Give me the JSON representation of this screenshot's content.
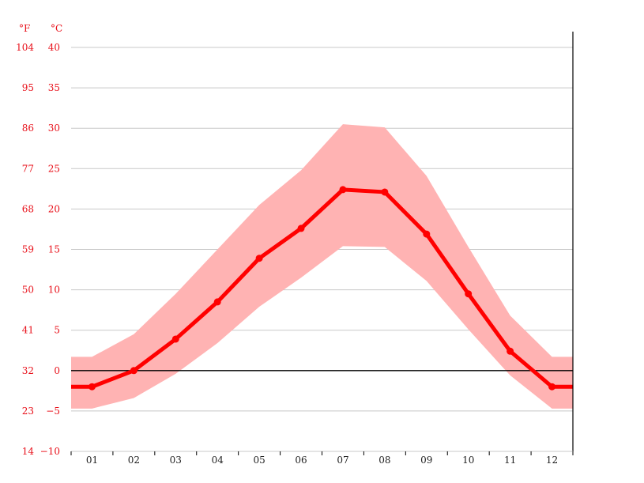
{
  "chart_data": {
    "type": "line",
    "title": "",
    "units": {
      "fahrenheit": "°F",
      "celsius": "°C"
    },
    "categories": [
      "01",
      "02",
      "03",
      "04",
      "05",
      "06",
      "07",
      "08",
      "09",
      "10",
      "11",
      "12"
    ],
    "y_ticks_c": [
      "40",
      "35",
      "30",
      "25",
      "20",
      "15",
      "10",
      "5",
      "0",
      "−5",
      "−10"
    ],
    "y_ticks_f": [
      "104",
      "95",
      "86",
      "77",
      "68",
      "59",
      "50",
      "41",
      "32",
      "23",
      "14"
    ],
    "ylim_c": [
      -10,
      40
    ],
    "series": [
      {
        "values": [
          -2.0,
          0.0,
          3.9,
          8.5,
          13.9,
          17.6,
          22.4,
          22.1,
          16.9,
          9.5,
          2.4,
          -2.0
        ]
      }
    ],
    "band": {
      "upper": [
        1.7,
        4.5,
        9.5,
        15.0,
        20.5,
        24.8,
        30.5,
        30.1,
        24.1,
        15.3,
        6.8,
        1.7
      ],
      "lower": [
        -4.7,
        -3.4,
        -0.4,
        3.4,
        7.9,
        11.5,
        15.4,
        15.3,
        11.1,
        5.1,
        -0.6,
        -4.7
      ]
    },
    "grid": true,
    "colors": {
      "line": "#ff0000",
      "band": "#ffb3b3",
      "grid": "#c8c8c8",
      "zero_line": "#000000",
      "axis_text": "#e8101a"
    }
  }
}
